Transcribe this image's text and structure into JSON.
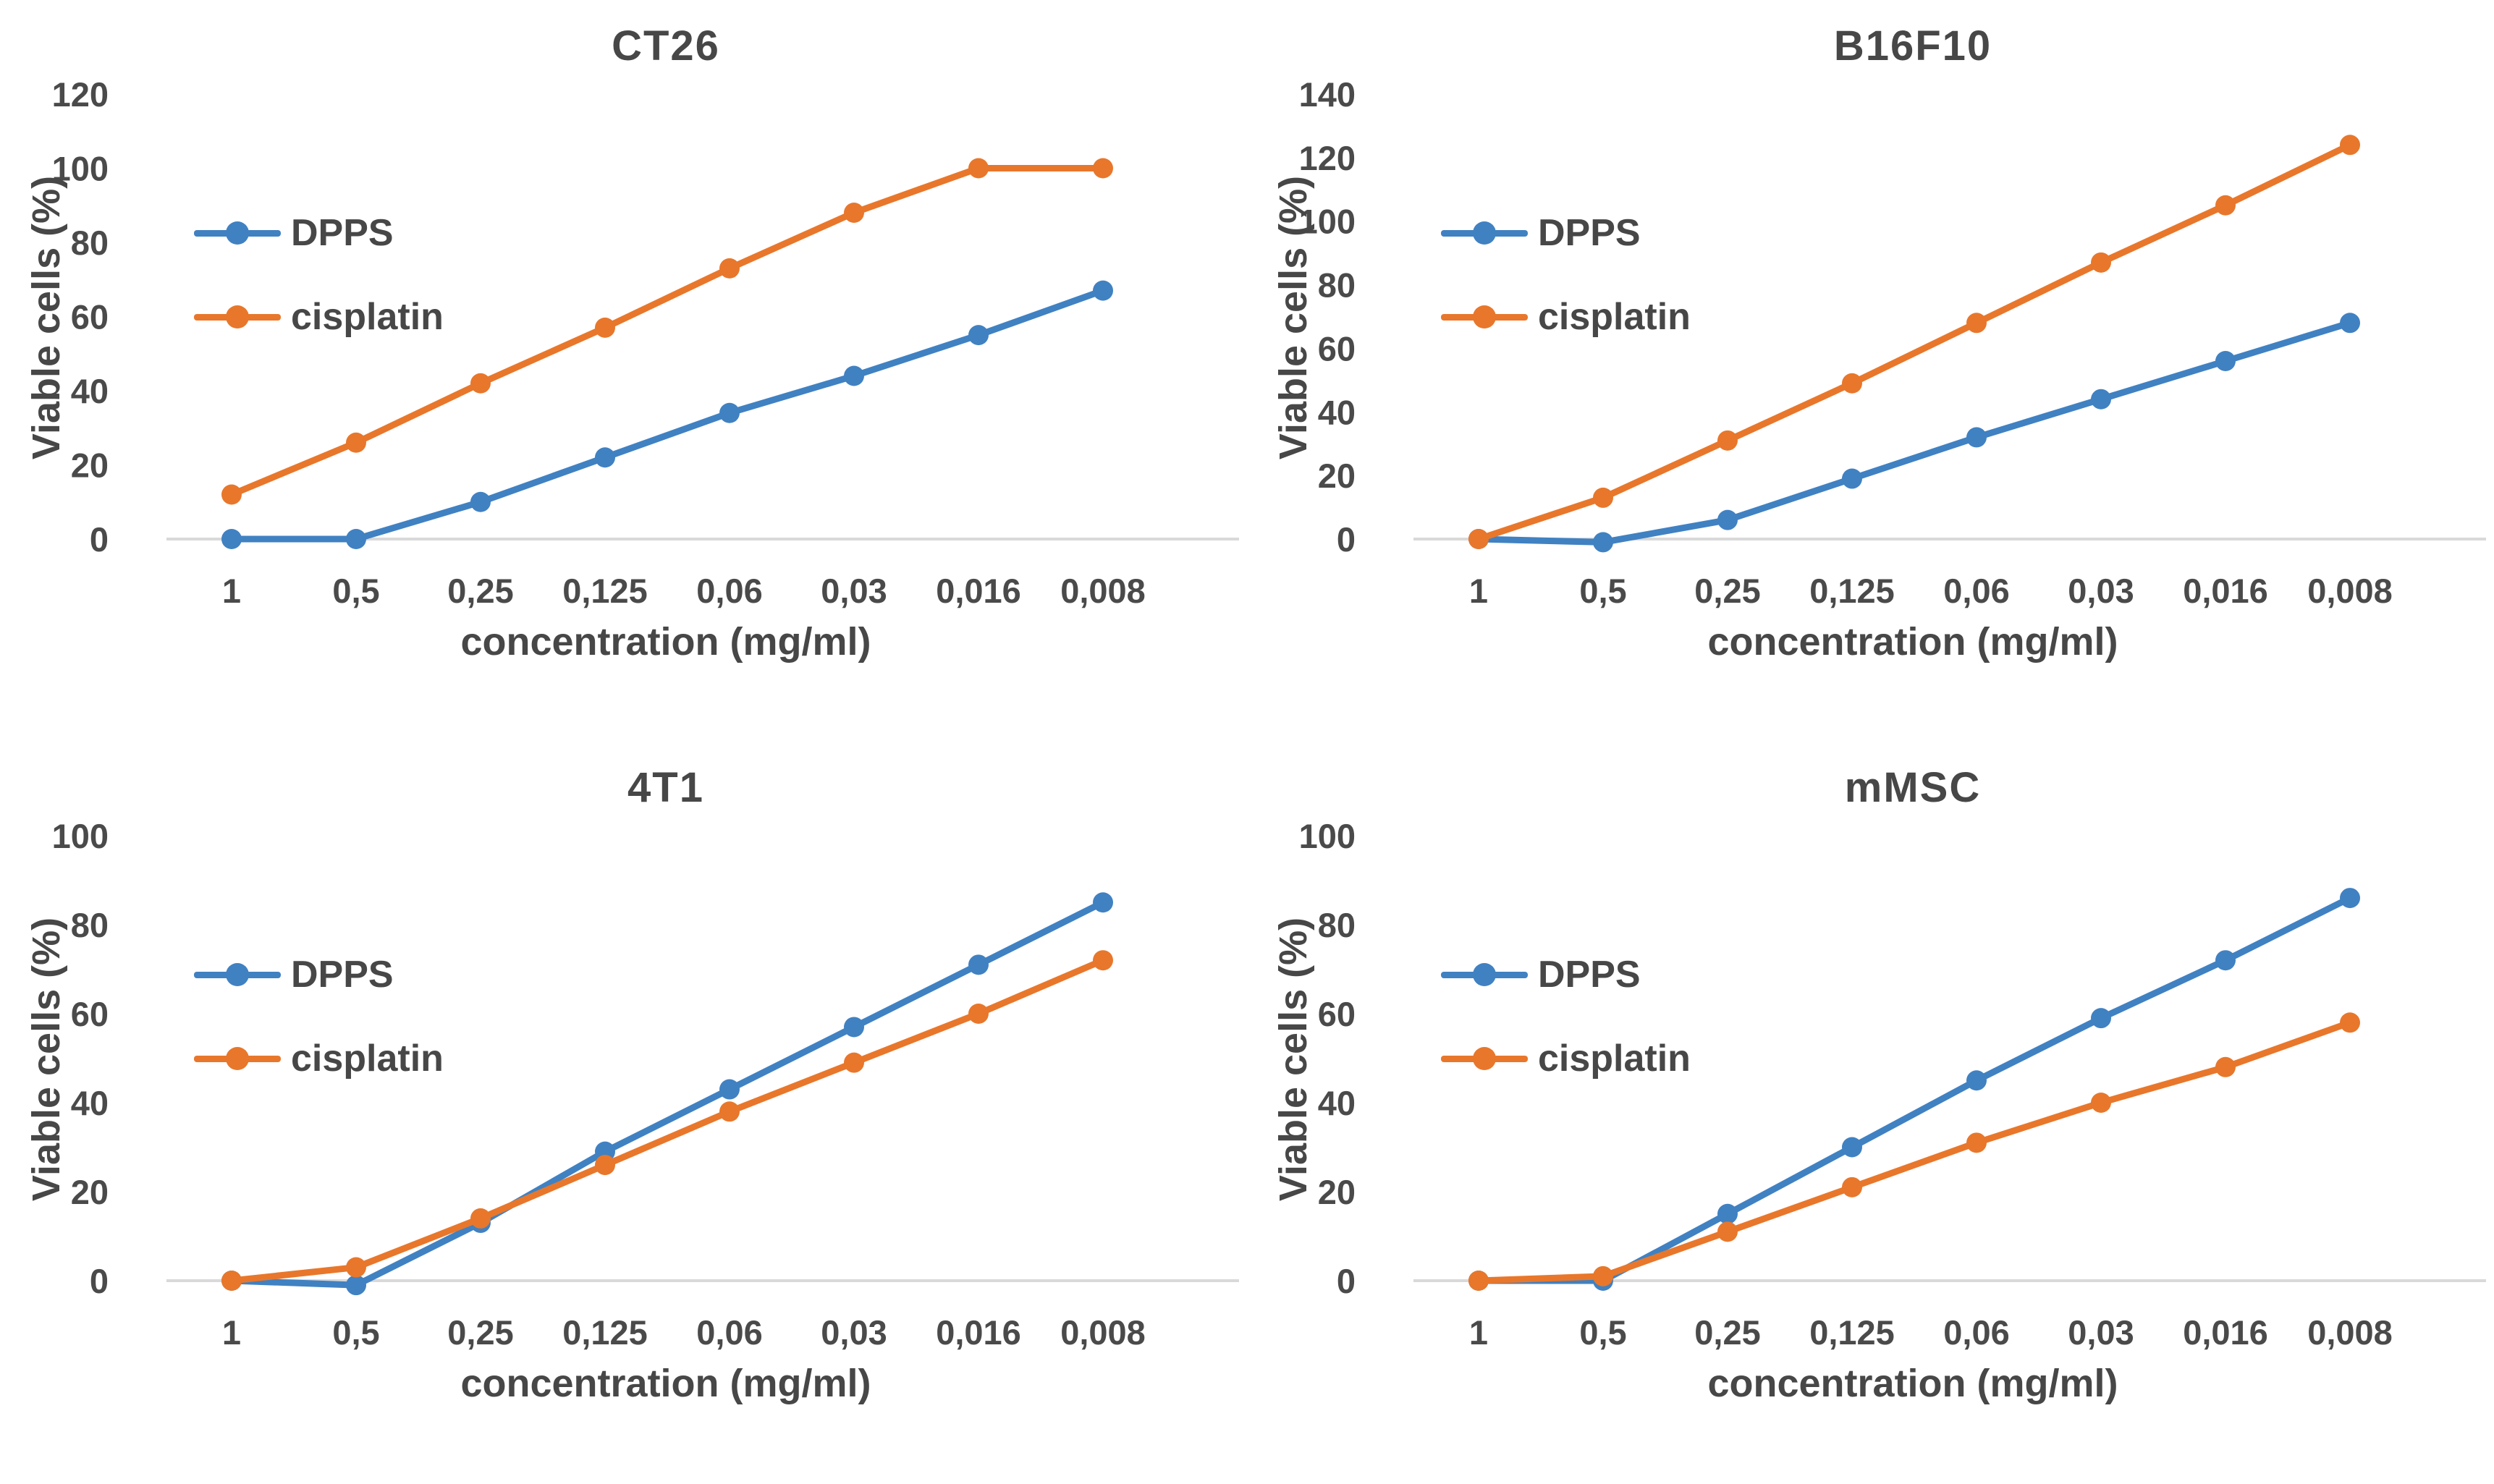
{
  "figure": {
    "layout": "2x2 grid of line charts",
    "colors": {
      "text": "#474747",
      "axis_line": "#d9d9d9",
      "background": "#ffffff",
      "dpps": "#4081C2",
      "cisplatin": "#E8772B"
    }
  },
  "chart_data": [
    {
      "type": "line",
      "title": "CT26",
      "xlabel": "concentration (mg/ml)",
      "ylabel": "Viable cells (%)",
      "ylim": [
        0,
        120
      ],
      "ytick_step": 20,
      "grid": false,
      "legend_position": "upper-left",
      "categories": [
        "1",
        "0,5",
        "0,25",
        "0,125",
        "0,06",
        "0,03",
        "0,016",
        "0,008"
      ],
      "series": [
        {
          "name": "DPPS",
          "color": "#4081C2",
          "values": [
            0,
            0,
            10,
            22,
            34,
            44,
            55,
            67
          ]
        },
        {
          "name": "cisplatin",
          "color": "#E8772B",
          "values": [
            12,
            26,
            42,
            57,
            73,
            88,
            100,
            100
          ]
        }
      ]
    },
    {
      "type": "line",
      "title": "B16F10",
      "xlabel": "concentration (mg/ml)",
      "ylabel": "Viable cells (%)",
      "ylim": [
        0,
        140
      ],
      "ytick_step": 20,
      "grid": false,
      "legend_position": "upper-left",
      "categories": [
        "1",
        "0,5",
        "0,25",
        "0,125",
        "0,06",
        "0,03",
        "0,016",
        "0,008"
      ],
      "series": [
        {
          "name": "DPPS",
          "color": "#4081C2",
          "values": [
            0,
            -1,
            6,
            19,
            32,
            44,
            56,
            68
          ]
        },
        {
          "name": "cisplatin",
          "color": "#E8772B",
          "values": [
            0,
            13,
            31,
            49,
            68,
            87,
            105,
            124
          ]
        }
      ]
    },
    {
      "type": "line",
      "title": "4T1",
      "xlabel": "concentration (mg/ml)",
      "ylabel": "Viable cells (%)",
      "ylim": [
        0,
        100
      ],
      "ytick_step": 20,
      "grid": false,
      "legend_position": "upper-left",
      "categories": [
        "1",
        "0,5",
        "0,25",
        "0,125",
        "0,06",
        "0,03",
        "0,016",
        "0,008"
      ],
      "series": [
        {
          "name": "DPPS",
          "color": "#4081C2",
          "values": [
            0,
            -1,
            13,
            29,
            43,
            57,
            71,
            85
          ]
        },
        {
          "name": "cisplatin",
          "color": "#E8772B",
          "values": [
            0,
            3,
            14,
            26,
            38,
            49,
            60,
            72
          ]
        }
      ]
    },
    {
      "type": "line",
      "title": "mMSC",
      "xlabel": "concentration (mg/ml)",
      "ylabel": "Viable cells (%)",
      "ylim": [
        0,
        100
      ],
      "ytick_step": 20,
      "grid": false,
      "legend_position": "upper-left",
      "categories": [
        "1",
        "0,5",
        "0,25",
        "0,125",
        "0,06",
        "0,03",
        "0,016",
        "0,008"
      ],
      "series": [
        {
          "name": "DPPS",
          "color": "#4081C2",
          "values": [
            0,
            0,
            15,
            30,
            45,
            59,
            72,
            86
          ]
        },
        {
          "name": "cisplatin",
          "color": "#E8772B",
          "values": [
            0,
            1,
            11,
            21,
            31,
            40,
            48,
            58
          ]
        }
      ]
    }
  ]
}
